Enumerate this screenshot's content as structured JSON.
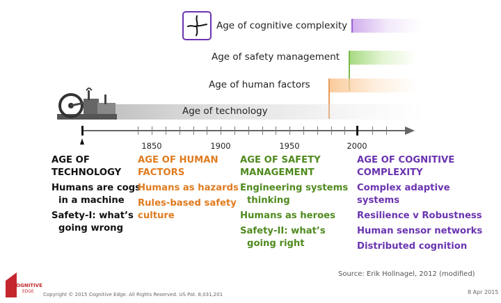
{
  "ages": {
    "cognitive": "Age of cognitive complexity",
    "safety": "Age of safety management",
    "human": "Age of human factors",
    "technology": "Age of technology"
  },
  "timeline": {
    "ticks": [
      "1850",
      "1900",
      "1950",
      "2000"
    ]
  },
  "columns": {
    "technology": {
      "head": [
        "AGE OF",
        "TECHNOLOGY"
      ],
      "items": [
        [
          "Humans are cogs",
          "in a machine"
        ],
        [
          "Safety-I: what’s",
          "going wrong"
        ]
      ]
    },
    "human": {
      "head": [
        "AGE OF HUMAN",
        "FACTORS"
      ],
      "items": [
        [
          "Humans as hazards"
        ],
        [
          "Rules-based safety",
          "culture"
        ]
      ]
    },
    "safety": {
      "head": [
        "AGE OF SAFETY",
        "MANAGEMENT"
      ],
      "items": [
        [
          "Engineering systems",
          "thinking"
        ],
        [
          "Humans as heroes"
        ],
        [
          "Safety-II: what’s",
          "going right"
        ]
      ]
    },
    "cognitive": {
      "head": [
        "AGE OF COGNITIVE",
        "COMPLEXITY"
      ],
      "items": [
        [
          "Complex adaptive",
          "systems"
        ],
        [
          "Resilience v Robustness"
        ],
        [
          "Human sensor networks"
        ],
        [
          "Distributed cognition"
        ]
      ]
    }
  },
  "source": "Source: Erik Hollnagel, 2012 (modified)",
  "logo": {
    "line1": "COGNITIVE",
    "line2": "EDGE"
  },
  "copyright": "Copyright © 2015 Cognitive Edge. All Rights Reserved.  US Pat. 8,031,201",
  "date": "8 Apr 2015",
  "colors": {
    "technology": "#111111",
    "human": "#e07b1f",
    "safety": "#4f8a1e",
    "cognitive": "#6a34b0",
    "logo_red": "#c4262e"
  }
}
